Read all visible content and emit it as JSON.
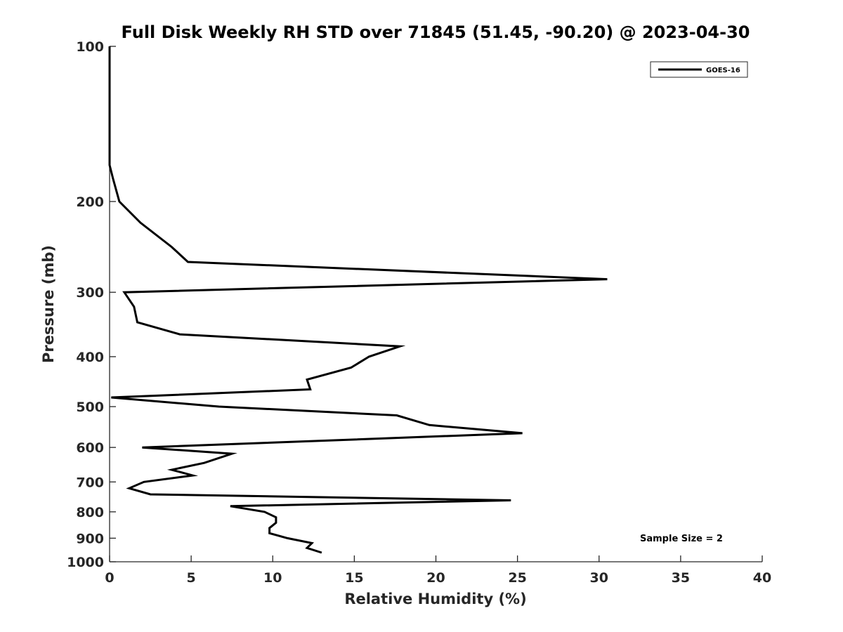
{
  "chart_data": {
    "type": "line",
    "title": "Full Disk Weekly RH STD over 71845 (51.45, -90.20) @ 2023-04-30",
    "xlabel": "Relative Humidity (%)",
    "ylabel": "Pressure (mb)",
    "xlim": [
      0,
      40
    ],
    "ylim": [
      100,
      1000
    ],
    "y_scale": "log",
    "y_inverted": true,
    "x_ticks": [
      "0",
      "5",
      "10",
      "15",
      "20",
      "25",
      "30",
      "35",
      "40"
    ],
    "y_ticks": [
      "100",
      "200",
      "300",
      "400",
      "500",
      "600",
      "700",
      "800",
      "900",
      "1000"
    ],
    "legend_position": "top-right",
    "grid": false,
    "annotation": "Sample Size = 2",
    "series": [
      {
        "name": "GOES-16",
        "color": "#000000",
        "x": [
          0.0,
          0.0,
          0.0,
          0.0,
          0.0,
          0.2,
          0.6,
          1.9,
          3.8,
          4.8,
          30.5,
          0.9,
          1.5,
          1.7,
          4.3,
          17.8,
          15.9,
          14.8,
          12.1,
          12.3,
          0.1,
          6.7,
          17.6,
          19.6,
          25.3,
          2.0,
          7.5,
          5.8,
          3.8,
          5.1,
          2.1,
          1.2,
          2.5,
          24.6,
          7.4,
          9.5,
          10.2,
          10.2,
          9.8,
          9.8,
          10.9,
          12.4,
          12.1,
          13.0
        ],
        "y": [
          100,
          120,
          130,
          150,
          170,
          180,
          200,
          220,
          245,
          262,
          283,
          300,
          320,
          343,
          362,
          382,
          400,
          420,
          443,
          463,
          480,
          500,
          520,
          543,
          563,
          600,
          617,
          643,
          663,
          680,
          700,
          720,
          740,
          760,
          780,
          800,
          820,
          840,
          860,
          880,
          900,
          920,
          940,
          960
        ]
      }
    ]
  }
}
